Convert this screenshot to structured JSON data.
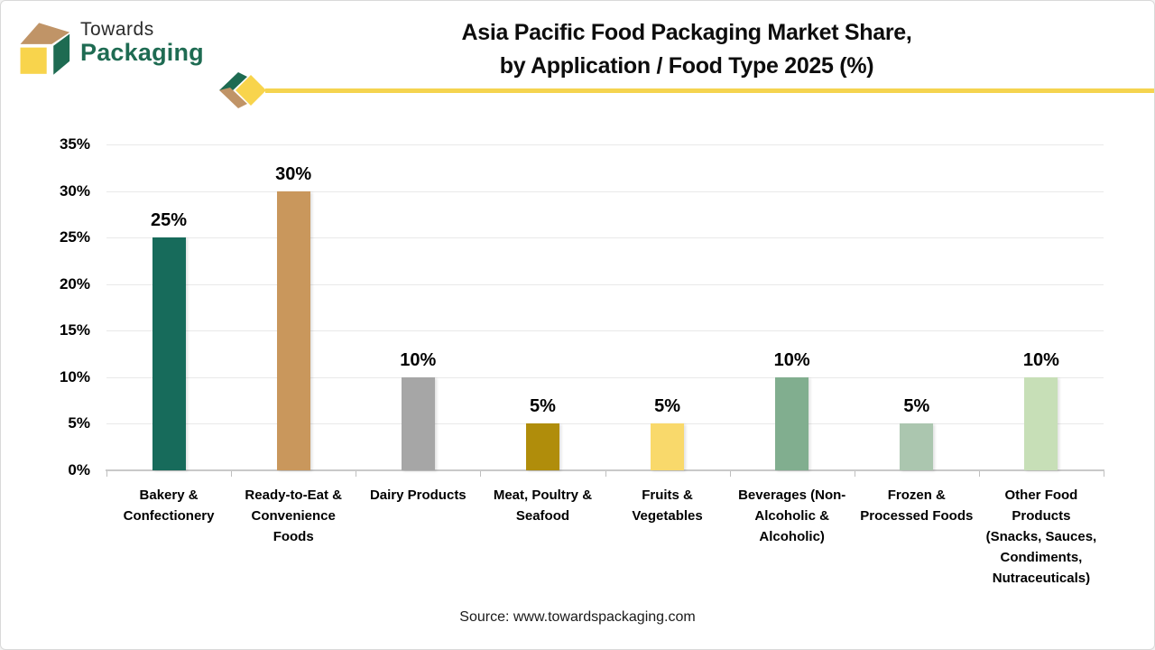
{
  "header": {
    "logo": {
      "line1": "Towards",
      "line2": "Packaging"
    },
    "title_line1": "Asia Pacific Food Packaging Market Share,",
    "title_line2": "by Application / Food Type 2025 (%)"
  },
  "footer": {
    "source": "Source: www.towardspackaging.com"
  },
  "colors": {
    "accent_line": "#f5d44f",
    "logo_green": "#1e6b52",
    "logo_tan": "#c09467",
    "logo_yellow": "#f8d44c",
    "axis_gray": "#c9c9c9",
    "gridline_gray": "#e9e9e9"
  },
  "chart_data": {
    "type": "bar",
    "title": "Asia Pacific Food Packaging Market Share, by Application / Food Type 2025 (%)",
    "xlabel": "",
    "ylabel": "",
    "ylim": [
      0,
      35
    ],
    "grid": true,
    "legend": false,
    "y_ticks": [
      "0%",
      "5%",
      "10%",
      "15%",
      "20%",
      "25%",
      "30%",
      "35%"
    ],
    "categories": [
      "Bakery & Confectionery",
      "Ready-to-Eat & Convenience Foods",
      "Dairy Products",
      "Meat, Poultry & Seafood",
      "Fruits & Vegetables",
      "Beverages (Non-Alcoholic & Alcoholic)",
      "Frozen & Processed Foods",
      "Other Food Products (Snacks, Sauces, Condiments, Nutraceuticals)"
    ],
    "category_label_lines": [
      [
        "Bakery &",
        "Confectionery"
      ],
      [
        "Ready-to-Eat &",
        "Convenience",
        "Foods"
      ],
      [
        "Dairy Products"
      ],
      [
        "Meat, Poultry &",
        "Seafood"
      ],
      [
        "Fruits &",
        "Vegetables"
      ],
      [
        "Beverages (Non-",
        "Alcoholic &",
        "Alcoholic)"
      ],
      [
        "Frozen &",
        "Processed Foods"
      ],
      [
        "Other Food",
        "Products",
        "(Snacks, Sauces,",
        "Condiments,",
        "Nutraceuticals)"
      ]
    ],
    "values": [
      25,
      30,
      10,
      5,
      5,
      10,
      5,
      10
    ],
    "value_labels": [
      "25%",
      "30%",
      "10%",
      "5%",
      "5%",
      "10%",
      "5%",
      "10%"
    ],
    "bar_colors": [
      "#176b5b",
      "#c9975c",
      "#a6a6a6",
      "#b08d0b",
      "#f9d96b",
      "#81ae8f",
      "#abc6af",
      "#c7dfb7"
    ]
  }
}
